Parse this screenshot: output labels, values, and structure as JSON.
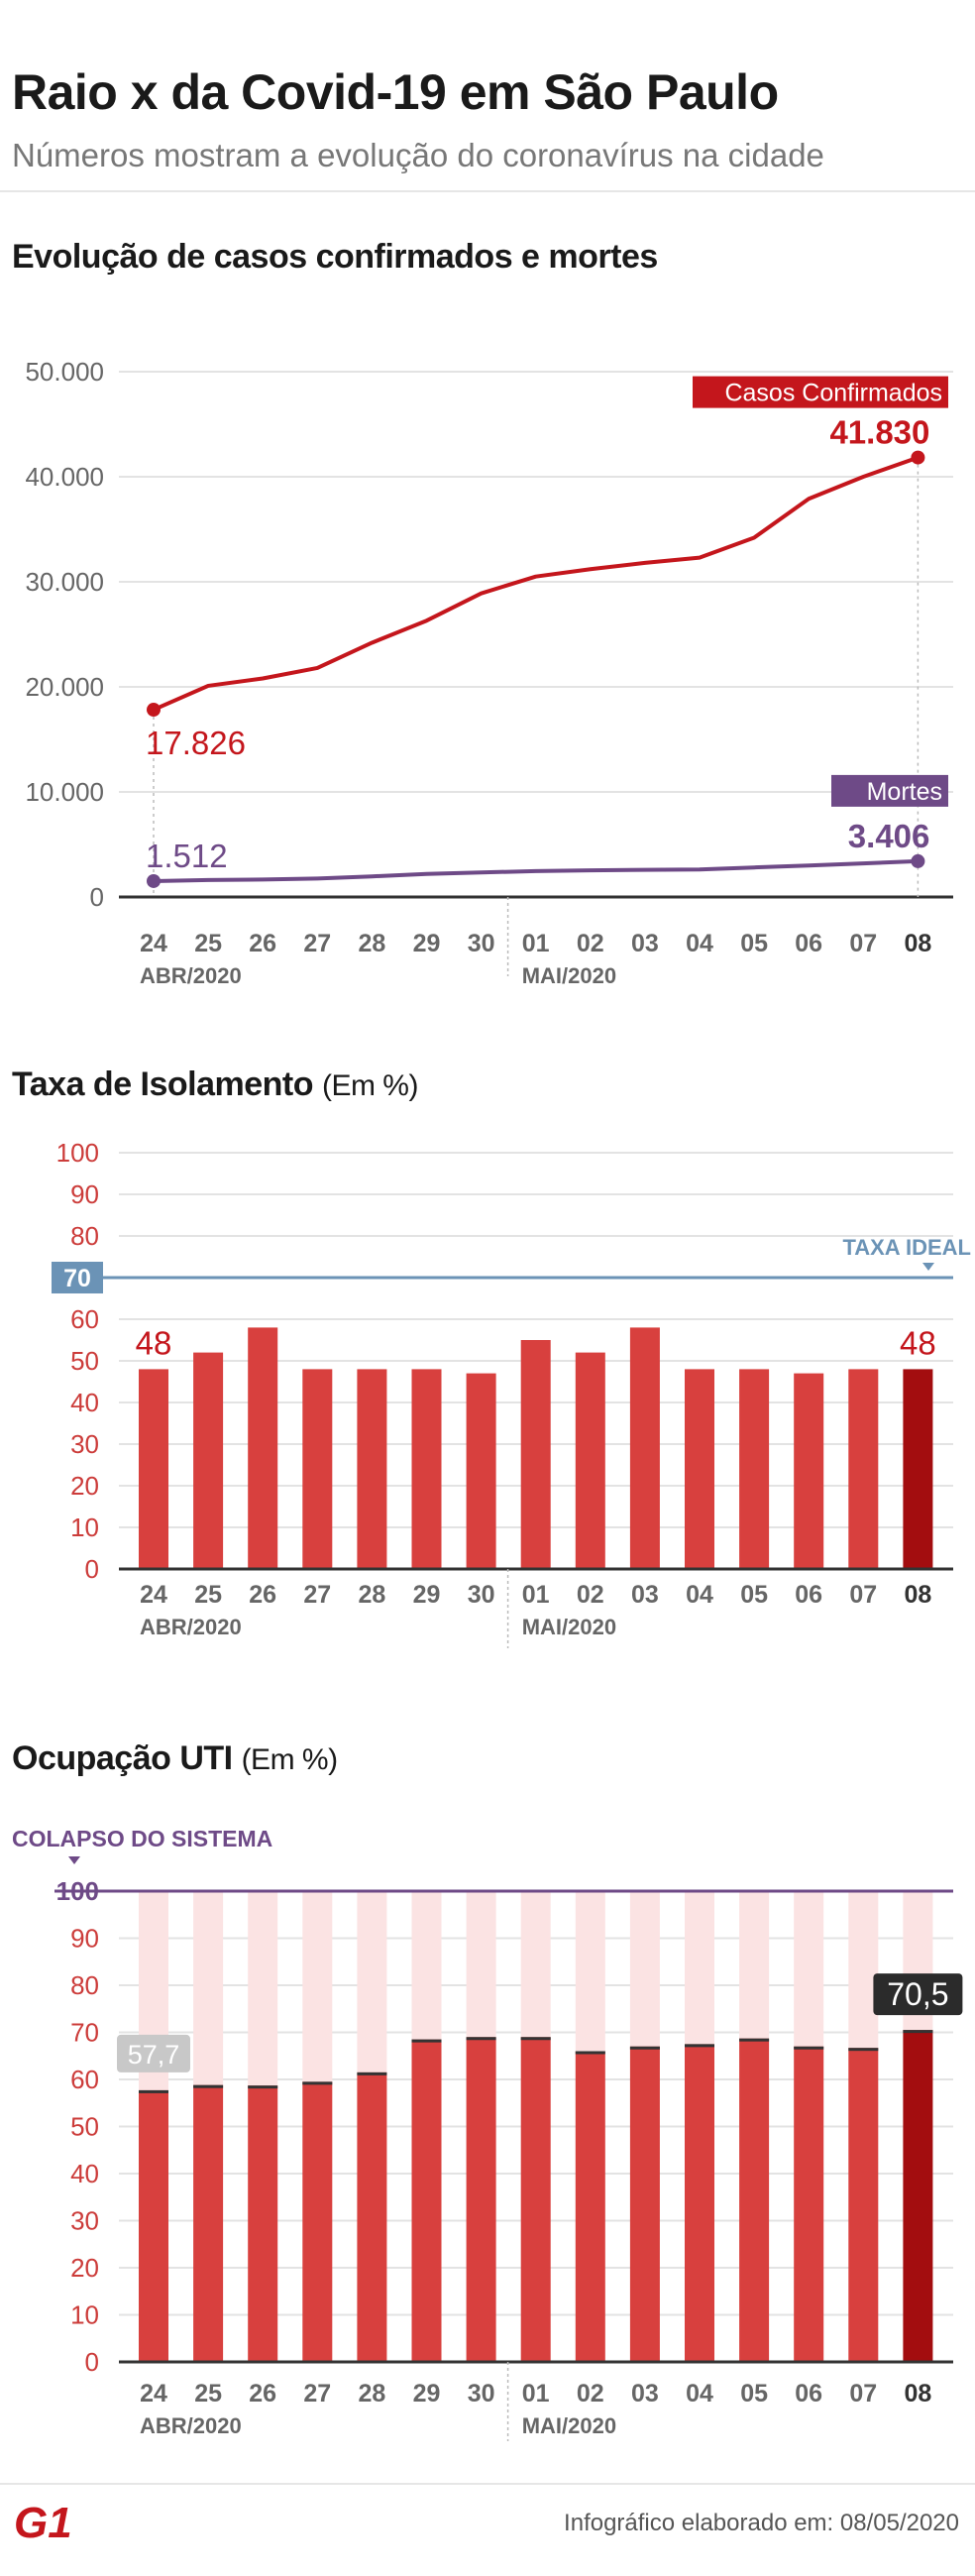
{
  "header": {
    "title": "Raio x da Covid-19 em São Paulo",
    "subtitle": "Números mostram a evolução do coronavírus na cidade"
  },
  "categories": [
    "24",
    "25",
    "26",
    "27",
    "28",
    "29",
    "30",
    "01",
    "02",
    "03",
    "04",
    "05",
    "06",
    "07",
    "08"
  ],
  "month_labels": [
    "ABR/2020",
    "MAI/2020"
  ],
  "colors": {
    "cases": "#c4161c",
    "deaths": "#6e4a87",
    "bar": "#d8403e",
    "bar_last": "#a30d0f",
    "ideal": "#6b93b6",
    "collapse": "#6e4a87",
    "tick": "#cc3c3a",
    "grid": "#e3e3e3"
  },
  "chart_data": [
    {
      "type": "line",
      "title": "Evolução de casos confirmados e mortes",
      "ylim": [
        0,
        50000
      ],
      "yticks": [
        "0",
        "10.000",
        "20.000",
        "30.000",
        "40.000",
        "50.000"
      ],
      "series": [
        {
          "name": "Casos Confirmados",
          "values": [
            17826,
            20100,
            20800,
            21800,
            24200,
            26300,
            28900,
            30500,
            31200,
            31800,
            32300,
            34200,
            37900,
            40000,
            41830
          ],
          "labels": {
            "first": "17.826",
            "last": "41.830"
          }
        },
        {
          "name": "Mortes",
          "values": [
            1512,
            1620,
            1660,
            1760,
            1960,
            2190,
            2330,
            2470,
            2540,
            2580,
            2620,
            2810,
            3000,
            3200,
            3406
          ],
          "labels": {
            "first": "1.512",
            "last": "3.406"
          }
        }
      ]
    },
    {
      "type": "bar",
      "title": "Taxa de Isolamento",
      "unit": "(Em %)",
      "ylim": [
        0,
        100
      ],
      "yticks": [
        "0",
        "10",
        "20",
        "30",
        "40",
        "50",
        "60",
        "70",
        "80",
        "90",
        "100"
      ],
      "values": [
        48,
        52,
        58,
        48,
        48,
        48,
        47,
        55,
        52,
        58,
        48,
        48,
        47,
        48,
        48
      ],
      "reference": {
        "value": 70,
        "label": "TAXA IDEAL",
        "tick": "70"
      },
      "labels": {
        "first": "48",
        "last": "48"
      }
    },
    {
      "type": "bar",
      "title": "Ocupação UTI",
      "unit": "(Em %)",
      "ylim": [
        0,
        100
      ],
      "yticks": [
        "0",
        "10",
        "20",
        "30",
        "40",
        "50",
        "60",
        "70",
        "80",
        "90",
        "100"
      ],
      "values": [
        57.7,
        58.8,
        58.7,
        59.5,
        61.5,
        68.5,
        69,
        69,
        66,
        67,
        67.5,
        68.7,
        67,
        66.7,
        70.5
      ],
      "reference": {
        "value": 100,
        "label": "COLAPSO DO SISTEMA",
        "tick": "100"
      },
      "labels": {
        "first": "57,7",
        "last": "70,5"
      }
    }
  ],
  "footer": {
    "logo": "G1",
    "credit": "Infográfico elaborado em: 08/05/2020"
  }
}
